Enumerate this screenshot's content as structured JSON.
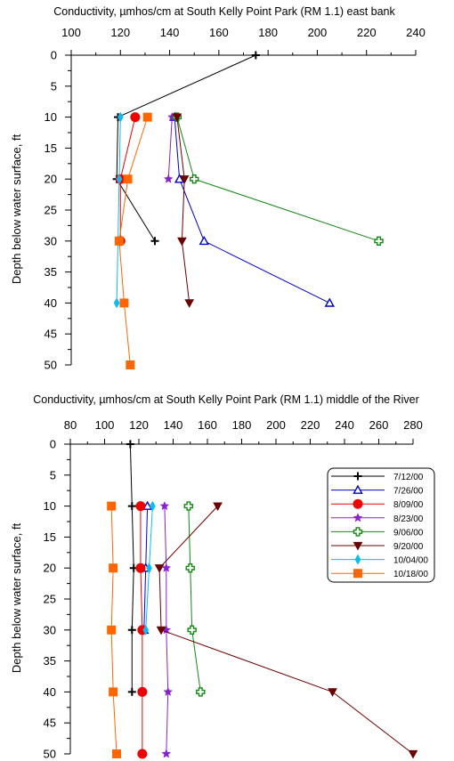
{
  "legend": {
    "entries": [
      {
        "label": "7/12/00",
        "color": "#000000",
        "marker": "plus"
      },
      {
        "label": "7/26/00",
        "color": "#0000cc",
        "marker": "triangle-open"
      },
      {
        "label": "8/09/00",
        "color": "#ee0000",
        "marker": "circle"
      },
      {
        "label": "8/23/00",
        "color": "#8822cc",
        "marker": "star"
      },
      {
        "label": "9/06/00",
        "color": "#118811",
        "marker": "cross-open"
      },
      {
        "label": "9/20/00",
        "color": "#6b0000",
        "marker": "triangle-down"
      },
      {
        "label": "10/04/00",
        "color": "#11bbee",
        "marker": "diamond"
      },
      {
        "label": "10/18/00",
        "color": "#ff6600",
        "marker": "square"
      }
    ]
  },
  "chart_data": [
    {
      "type": "line",
      "title": "Conductivity, µmhos/cm at South Kelly Point Park (RM 1.1) east bank",
      "xlabel": "",
      "ylabel": "Depth below water surface, ft",
      "x_axis_position": "top",
      "xlim": [
        100,
        240
      ],
      "xticks": [
        100,
        120,
        140,
        160,
        180,
        200,
        220,
        240
      ],
      "ylim": [
        0,
        50
      ],
      "y_inverted": true,
      "yticks": [
        0,
        5,
        10,
        15,
        20,
        25,
        30,
        35,
        40,
        45,
        50
      ],
      "grid": false,
      "legend": "none",
      "series": [
        {
          "name": "7/12/00",
          "points": [
            [
              175,
              0
            ],
            [
              119,
              10
            ],
            [
              118.5,
              20
            ],
            [
              134,
              30
            ]
          ]
        },
        {
          "name": "7/26/00",
          "points": [
            [
              142,
              10
            ],
            [
              144,
              20
            ],
            [
              154,
              30
            ],
            [
              205,
              40
            ]
          ]
        },
        {
          "name": "8/09/00",
          "points": [
            [
              126,
              10
            ],
            [
              120,
              20
            ],
            [
              120,
              30
            ]
          ]
        },
        {
          "name": "8/23/00",
          "points": [
            [
              141,
              10
            ],
            [
              139.5,
              20
            ]
          ]
        },
        {
          "name": "9/06/00",
          "points": [
            [
              143,
              10
            ],
            [
              150,
              20
            ],
            [
              225,
              30
            ]
          ]
        },
        {
          "name": "9/20/00",
          "points": [
            [
              143,
              10
            ],
            [
              146,
              20
            ],
            [
              145,
              30
            ],
            [
              148,
              40
            ]
          ]
        },
        {
          "name": "10/04/00",
          "points": [
            [
              120,
              10
            ],
            [
              119.5,
              20
            ],
            [
              119,
              30
            ],
            [
              118.5,
              40
            ]
          ]
        },
        {
          "name": "10/18/00",
          "points": [
            [
              131,
              10
            ],
            [
              123,
              20
            ],
            [
              119.5,
              30
            ],
            [
              121.5,
              40
            ],
            [
              124,
              50
            ]
          ]
        }
      ]
    },
    {
      "type": "line",
      "title": "Conductivity, µmhos/cm at South Kelly Point Park (RM 1.1) middle of the River",
      "xlabel": "",
      "ylabel": "Depth below water surface, ft",
      "x_axis_position": "top",
      "xlim": [
        80,
        280
      ],
      "xticks": [
        80,
        100,
        120,
        140,
        160,
        180,
        200,
        220,
        240,
        260,
        280
      ],
      "ylim": [
        0,
        50
      ],
      "y_inverted": true,
      "yticks": [
        0,
        5,
        10,
        15,
        20,
        25,
        30,
        35,
        40,
        45,
        50
      ],
      "grid": false,
      "legend": "top-right",
      "series": [
        {
          "name": "7/12/00",
          "points": [
            [
              115,
              0
            ],
            [
              116,
              10
            ],
            [
              117,
              20
            ],
            [
              116,
              30
            ],
            [
              116,
              40
            ]
          ]
        },
        {
          "name": "7/26/00",
          "points": [
            [
              125,
              10
            ],
            [
              124,
              20
            ],
            [
              123,
              30
            ]
          ]
        },
        {
          "name": "8/09/00",
          "points": [
            [
              121,
              10
            ],
            [
              121,
              20
            ],
            [
              122,
              30
            ],
            [
              122,
              40
            ],
            [
              122,
              50
            ]
          ]
        },
        {
          "name": "8/23/00",
          "points": [
            [
              135,
              10
            ],
            [
              136,
              20
            ],
            [
              136,
              30
            ],
            [
              137,
              40
            ],
            [
              136,
              50
            ]
          ]
        },
        {
          "name": "9/06/00",
          "points": [
            [
              149,
              10
            ],
            [
              150,
              20
            ],
            [
              151,
              30
            ],
            [
              156,
              40
            ]
          ]
        },
        {
          "name": "9/20/00",
          "points": [
            [
              166,
              10
            ],
            [
              132,
              20
            ],
            [
              133,
              30
            ],
            [
              233,
              40
            ],
            [
              280,
              50
            ]
          ]
        },
        {
          "name": "10/04/00",
          "points": [
            [
              128,
              10
            ],
            [
              126,
              20
            ],
            [
              124,
              30
            ]
          ]
        },
        {
          "name": "10/18/00",
          "points": [
            [
              104,
              10
            ],
            [
              105,
              20
            ],
            [
              104,
              30
            ],
            [
              105,
              40
            ],
            [
              107,
              50
            ]
          ]
        }
      ]
    }
  ]
}
